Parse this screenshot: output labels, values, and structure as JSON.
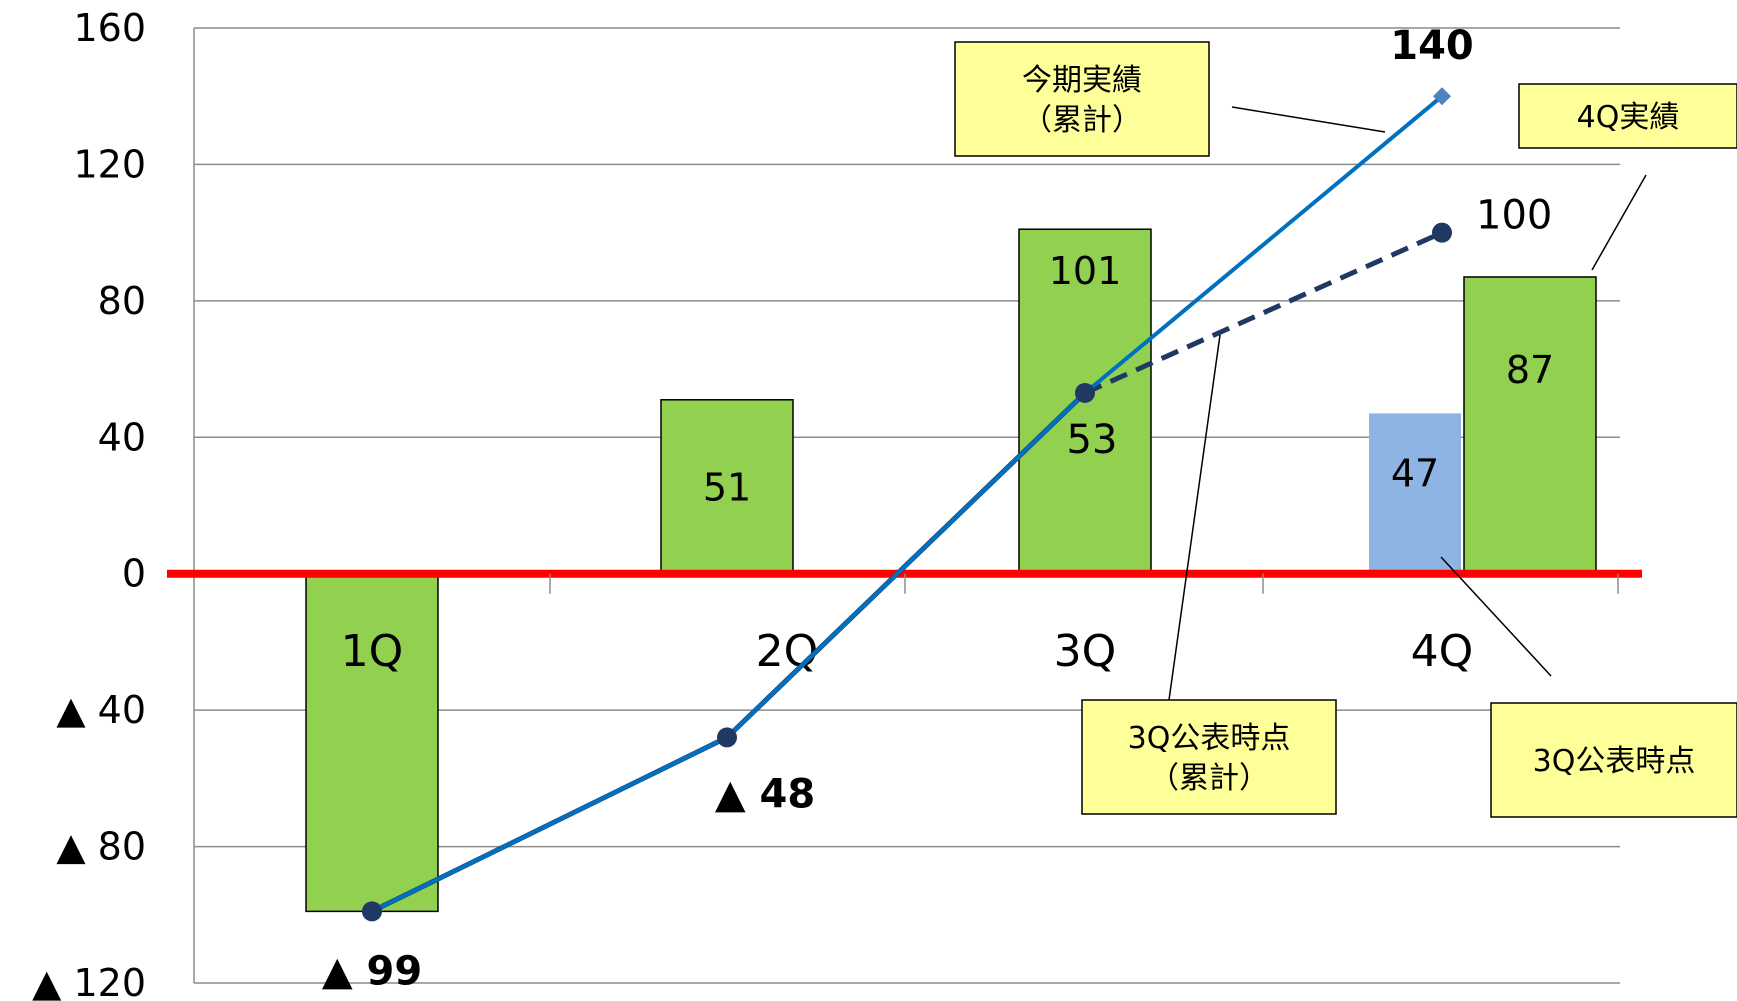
{
  "chart_data": {
    "type": "bar",
    "categories": [
      "1Q",
      "2Q",
      "3Q",
      "4Q"
    ],
    "ylim": [
      -120,
      160
    ],
    "yticks": [
      {
        "value": 160,
        "label": "160"
      },
      {
        "value": 120,
        "label": "120"
      },
      {
        "value": 80,
        "label": "80"
      },
      {
        "value": 40,
        "label": "40"
      },
      {
        "value": 0,
        "label": "0"
      },
      {
        "value": -40,
        "label": "▲ 40"
      },
      {
        "value": -80,
        "label": "▲ 80"
      },
      {
        "value": -120,
        "label": "▲ 120"
      }
    ],
    "grid": true,
    "colors": {
      "actual_bar": "#92d050",
      "forecast_bar": "#8eb4e3",
      "cumulative_actual_line": "#0070c0",
      "cumulative_forecast_line": "#1f3864",
      "zero_line": "#ff0000",
      "callout_fill": "#ffff99"
    },
    "bars": [
      {
        "category": "1Q",
        "value": -99,
        "label": ""
      },
      {
        "category": "2Q",
        "value": 51,
        "label": "51"
      },
      {
        "category": "3Q",
        "value": 101,
        "label": "101"
      },
      {
        "category": "4Q",
        "value": 47,
        "label": "47",
        "series": "forecast"
      },
      {
        "category": "4Q",
        "value": 87,
        "label": "87",
        "series": "actual"
      }
    ],
    "cumulative_actual": {
      "values": [
        -99,
        -48,
        53,
        140
      ],
      "labels": [
        "▲ 99",
        "▲ 48",
        "53",
        "140"
      ]
    },
    "cumulative_forecast": {
      "values": [
        -99,
        -48,
        53,
        100
      ],
      "end_label": "100"
    },
    "callouts": {
      "current_cumulative": [
        "今期実績",
        "（累計）"
      ],
      "q4_actual": [
        "4Q実績"
      ],
      "q3_announced_cumulative": [
        "3Q公表時点",
        "（累計）"
      ],
      "q3_announced": [
        "3Q公表時点"
      ]
    }
  }
}
